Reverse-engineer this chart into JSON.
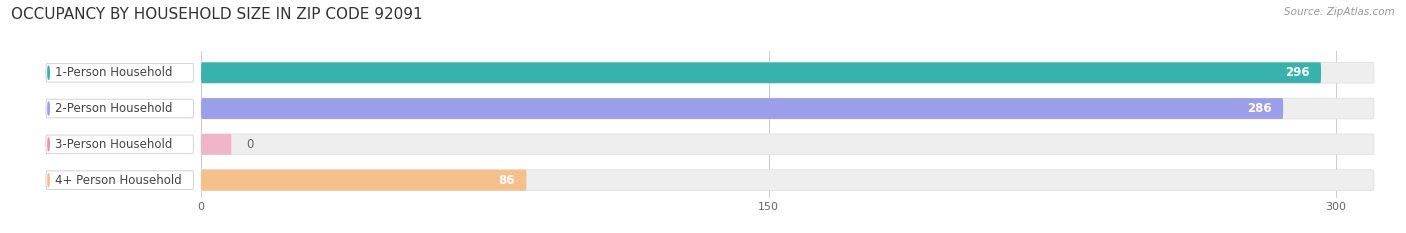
{
  "title": "OCCUPANCY BY HOUSEHOLD SIZE IN ZIP CODE 92091",
  "source": "Source: ZipAtlas.com",
  "categories": [
    "1-Person Household",
    "2-Person Household",
    "3-Person Household",
    "4+ Person Household"
  ],
  "values": [
    296,
    286,
    0,
    86
  ],
  "bar_colors": [
    "#38b2ac",
    "#9b9ee8",
    "#f48fb1",
    "#f5c08a"
  ],
  "xlim_data": [
    0,
    310
  ],
  "xticks": [
    0,
    150,
    300
  ],
  "background_color": "#ffffff",
  "bar_bg_color": "#eeeeee",
  "title_fontsize": 11,
  "label_fontsize": 8.5,
  "value_fontsize": 8.5,
  "source_fontsize": 7.5
}
